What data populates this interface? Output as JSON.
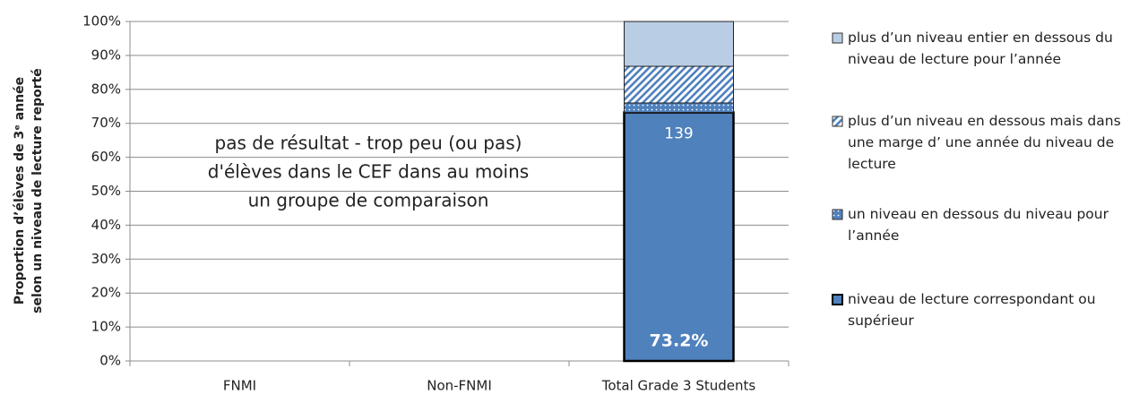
{
  "chart_data": {
    "type": "stacked_bar",
    "y_label": [
      "Proportion d’élèves de 3ᵉ année",
      "selon un niveau de lecture reporté"
    ],
    "categories": [
      "FNMI",
      "Non-FNMI",
      "Total Grade 3 Students"
    ],
    "series": [
      {
        "name": "niveau de lecture correspondant ou supérieur",
        "color": "#4f81bd",
        "pattern": "solid",
        "values": [
          null,
          null,
          73.2
        ],
        "value_labels": [
          null,
          null,
          "73.2%"
        ]
      },
      {
        "name": "un niveau en dessous du niveau pour l’année",
        "color": "#4f81bd",
        "pattern": "dots",
        "values": [
          null,
          null,
          2.8
        ]
      },
      {
        "name": "plus d’un niveau en dessous mais dans une marge d’ une année du niveau de lecture",
        "color": "#4f81bd",
        "pattern": "hatch",
        "values": [
          null,
          null,
          10.8
        ]
      },
      {
        "name": "plus d’un niveau entier en dessous du niveau de lecture pour l’année",
        "color": "#b9cde5",
        "pattern": "solid",
        "values": [
          null,
          null,
          13.2
        ]
      }
    ],
    "annotations": [
      "139"
    ],
    "note": [
      "pas de résultat - trop peu (ou pas)",
      "d'élèves dans le CEF dans au moins",
      "un groupe de comparaison"
    ],
    "ylim": [
      0,
      100
    ],
    "yticks": [
      {
        "value": 0,
        "label": "0%"
      },
      {
        "value": 10,
        "label": "10%"
      },
      {
        "value": 20,
        "label": "20%"
      },
      {
        "value": 30,
        "label": "30%"
      },
      {
        "value": 40,
        "label": "40%"
      },
      {
        "value": 50,
        "label": "50%"
      },
      {
        "value": 60,
        "label": "60%"
      },
      {
        "value": 70,
        "label": "70%"
      },
      {
        "value": 80,
        "label": "80%"
      },
      {
        "value": 90,
        "label": "90%"
      },
      {
        "value": 100,
        "label": "100%"
      }
    ],
    "grid": true,
    "legend": "right"
  }
}
